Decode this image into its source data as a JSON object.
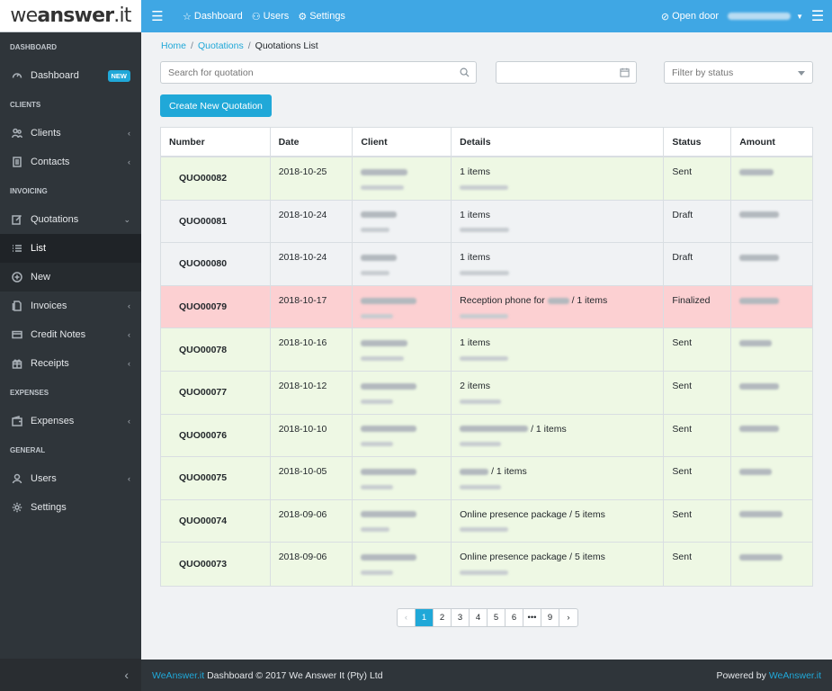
{
  "brand": {
    "logo_light": "we",
    "logo_bold": "answer",
    "logo_tld": ".it"
  },
  "sidebar": {
    "sections": [
      {
        "title": "DASHBOARD"
      },
      {
        "title": "CLIENTS"
      },
      {
        "title": "INVOICING"
      },
      {
        "title": "EXPENSES"
      },
      {
        "title": "GENERAL"
      }
    ],
    "items": {
      "dashboard": {
        "label": "Dashboard",
        "badge": "NEW"
      },
      "clients": {
        "label": "Clients"
      },
      "contacts": {
        "label": "Contacts"
      },
      "quotations": {
        "label": "Quotations"
      },
      "list": {
        "label": "List"
      },
      "new": {
        "label": "New"
      },
      "invoices": {
        "label": "Invoices"
      },
      "credit_notes": {
        "label": "Credit Notes"
      },
      "receipts": {
        "label": "Receipts"
      },
      "expenses": {
        "label": "Expenses"
      },
      "users": {
        "label": "Users"
      },
      "settings": {
        "label": "Settings"
      }
    }
  },
  "header": {
    "nav": {
      "dashboard": "Dashboard",
      "users": "Users",
      "settings": "Settings"
    },
    "open_door": "Open door"
  },
  "breadcrumb": {
    "home": "Home",
    "quotations": "Quotations",
    "current": "Quotations List"
  },
  "filters": {
    "search_placeholder": "Search for quotation",
    "date_value": "",
    "status_placeholder": "Filter by status"
  },
  "create_button": "Create New Quotation",
  "table": {
    "headers": {
      "number": "Number",
      "date": "Date",
      "client": "Client",
      "details": "Details",
      "status": "Status",
      "amount": "Amount"
    },
    "rows": [
      {
        "number": "QUO00082",
        "date": "2018-10-25",
        "details_text": "1 items",
        "status": "Sent"
      },
      {
        "number": "QUO00081",
        "date": "2018-10-24",
        "details_text": "1 items",
        "status": "Draft"
      },
      {
        "number": "QUO00080",
        "date": "2018-10-24",
        "details_text": "1 items",
        "status": "Draft"
      },
      {
        "number": "QUO00079",
        "date": "2018-10-17",
        "details_prefix": "Reception phone for",
        "details_text": "/ 1 items",
        "status": "Finalized"
      },
      {
        "number": "QUO00078",
        "date": "2018-10-16",
        "details_text": "1 items",
        "status": "Sent"
      },
      {
        "number": "QUO00077",
        "date": "2018-10-12",
        "details_text": "2 items",
        "status": "Sent"
      },
      {
        "number": "QUO00076",
        "date": "2018-10-10",
        "details_text": "/ 1 items",
        "status": "Sent"
      },
      {
        "number": "QUO00075",
        "date": "2018-10-05",
        "details_text": "/ 1 items",
        "status": "Sent"
      },
      {
        "number": "QUO00074",
        "date": "2018-09-06",
        "details_text": "Online presence package / 5 items",
        "status": "Sent"
      },
      {
        "number": "QUO00073",
        "date": "2018-09-06",
        "details_text": "Online presence package / 5 items",
        "status": "Sent"
      }
    ]
  },
  "pagination": {
    "prev": "‹",
    "pages": [
      "1",
      "2",
      "3",
      "4",
      "5",
      "6"
    ],
    "ellipsis": "•••",
    "last": "9",
    "next": "›",
    "current": "1"
  },
  "footer": {
    "brand_link": "WeAnswer.it",
    "copyright": "Dashboard © 2017 We Answer It (Pty) Ltd",
    "powered_by": "Powered by",
    "powered_link": "WeAnswer.it"
  },
  "colors": {
    "accent": "#20a8d8",
    "header": "#3fa7e4",
    "sidebar": "#2f353a",
    "row_sent": "#eef8e4",
    "row_finalized": "#fcd0d2"
  }
}
